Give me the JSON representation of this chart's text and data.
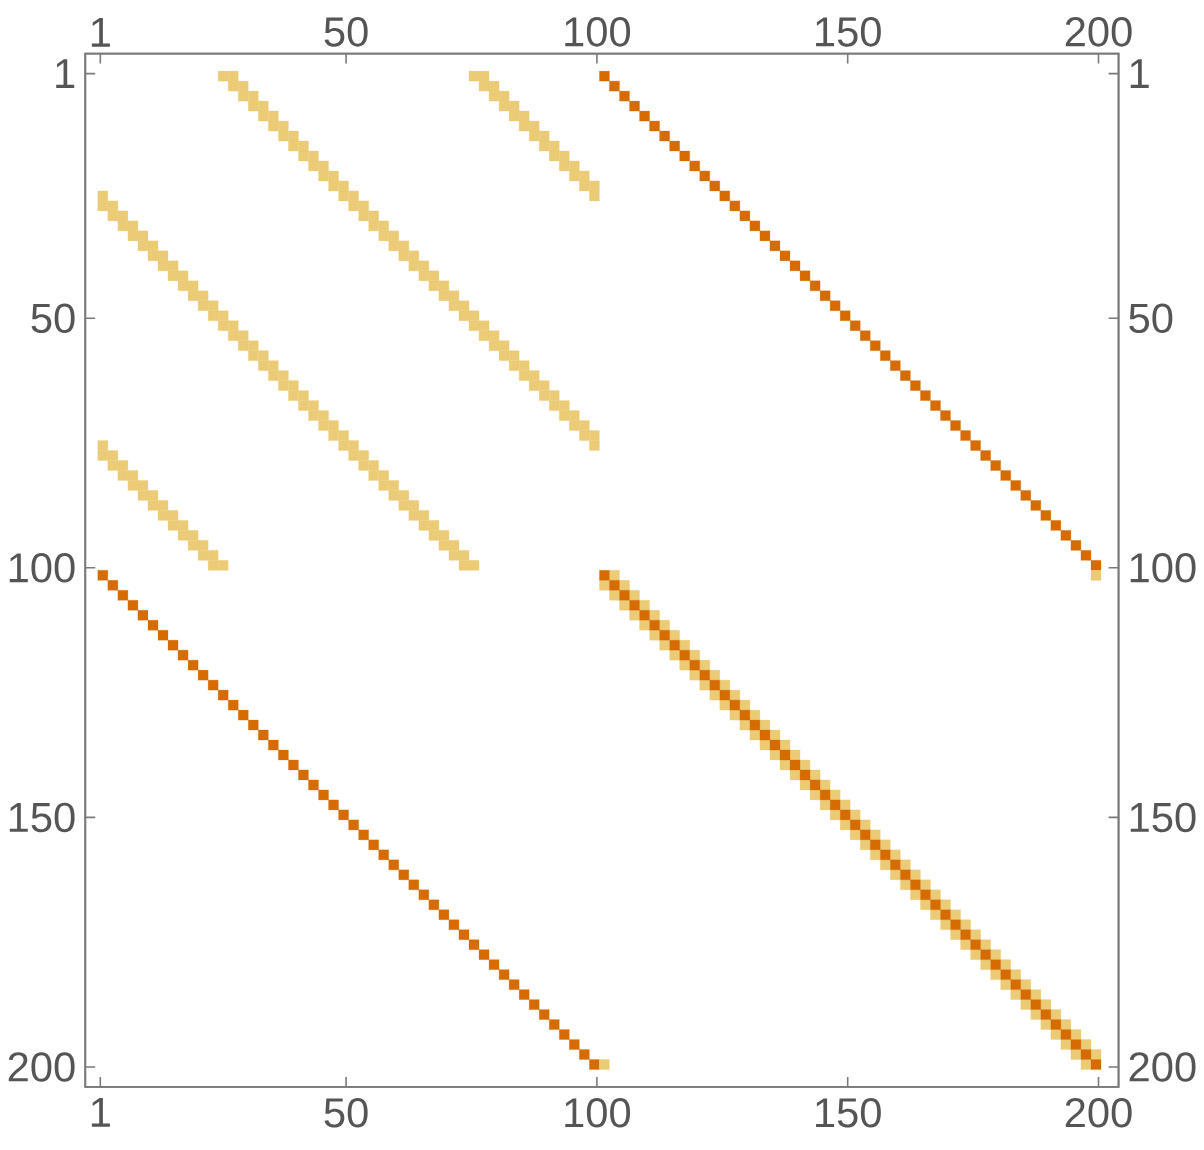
{
  "chart_data": {
    "type": "scatter",
    "marker": "square",
    "xlim": [
      -2,
      204
    ],
    "ylim": [
      204,
      -3
    ],
    "x2lim": [
      -2,
      204
    ],
    "y2lim": [
      204,
      -3
    ],
    "xticks": [
      1,
      50,
      100,
      150,
      200
    ],
    "yticks": [
      1,
      50,
      100,
      150,
      200
    ],
    "x2ticks": [
      1,
      50,
      100,
      150,
      200
    ],
    "y2ticks": [
      1,
      50,
      100,
      150,
      200
    ],
    "series": [
      {
        "color": "#d66c00",
        "x": [
          101.5,
          103.5,
          105.5,
          107.5,
          109.5,
          111.5,
          113.5,
          115.5,
          117.5,
          119.5,
          121.5,
          123.5,
          125.5,
          127.5,
          129.5,
          131.5,
          133.5,
          135.5,
          137.5,
          139.5,
          141.5,
          143.5,
          145.5,
          147.5,
          149.5,
          151.5,
          153.5,
          155.5,
          157.5,
          159.5,
          161.5,
          163.5,
          165.5,
          167.5,
          169.5,
          171.5,
          173.5,
          175.5,
          177.5,
          179.5,
          181.5,
          183.5,
          185.5,
          187.5,
          189.5,
          191.5,
          193.5,
          195.5,
          197.5,
          199.5
        ],
        "values": [
          1.5,
          3.5,
          5.5,
          7.5,
          9.5,
          11.5,
          13.5,
          15.5,
          17.5,
          19.5,
          21.5,
          23.5,
          25.5,
          27.5,
          29.5,
          31.5,
          33.5,
          35.5,
          37.5,
          39.5,
          41.5,
          43.5,
          45.5,
          47.5,
          49.5,
          51.5,
          53.5,
          55.5,
          57.5,
          59.5,
          61.5,
          63.5,
          65.5,
          67.5,
          69.5,
          71.5,
          73.5,
          75.5,
          77.5,
          79.5,
          81.5,
          83.5,
          85.5,
          87.5,
          89.5,
          91.5,
          93.5,
          95.5,
          97.5,
          99.5
        ]
      },
      {
        "color": "#d66c00",
        "x": [
          1.5,
          3.5,
          5.5,
          7.5,
          9.5,
          11.5,
          13.5,
          15.5,
          17.5,
          19.5,
          21.5,
          23.5,
          25.5,
          27.5,
          29.5,
          31.5,
          33.5,
          35.5,
          37.5,
          39.5,
          41.5,
          43.5,
          45.5,
          47.5,
          49.5,
          51.5,
          53.5,
          55.5,
          57.5,
          59.5,
          61.5,
          63.5,
          65.5,
          67.5,
          69.5,
          71.5,
          73.5,
          75.5,
          77.5,
          79.5,
          81.5,
          83.5,
          85.5,
          87.5,
          89.5,
          91.5,
          93.5,
          95.5,
          97.5,
          99.5
        ],
        "values": [
          101.5,
          103.5,
          105.5,
          107.5,
          109.5,
          111.5,
          113.5,
          115.5,
          117.5,
          119.5,
          121.5,
          123.5,
          125.5,
          127.5,
          129.5,
          131.5,
          133.5,
          135.5,
          137.5,
          139.5,
          141.5,
          143.5,
          145.5,
          147.5,
          149.5,
          151.5,
          153.5,
          155.5,
          157.5,
          159.5,
          161.5,
          163.5,
          165.5,
          167.5,
          169.5,
          171.5,
          173.5,
          175.5,
          177.5,
          179.5,
          181.5,
          183.5,
          185.5,
          187.5,
          189.5,
          191.5,
          193.5,
          195.5,
          197.5,
          199.5
        ]
      },
      {
        "color": "#ebcb75",
        "x": [
          103.5,
          105.5,
          107.5,
          109.5,
          111.5,
          113.5,
          115.5,
          117.5,
          119.5,
          121.5,
          123.5,
          125.5,
          127.5,
          129.5,
          131.5,
          133.5,
          135.5,
          137.5,
          139.5,
          141.5,
          143.5,
          145.5,
          147.5,
          149.5,
          151.5,
          153.5,
          155.5,
          157.5,
          159.5,
          161.5,
          163.5,
          165.5,
          167.5,
          169.5,
          171.5,
          173.5,
          175.5,
          177.5,
          179.5,
          181.5,
          183.5,
          185.5,
          187.5,
          189.5,
          191.5,
          193.5,
          195.5,
          197.5,
          199.5
        ],
        "values": [
          101.5,
          103.5,
          105.5,
          107.5,
          109.5,
          111.5,
          113.5,
          115.5,
          117.5,
          119.5,
          121.5,
          123.5,
          125.5,
          127.5,
          129.5,
          131.5,
          133.5,
          135.5,
          137.5,
          139.5,
          141.5,
          143.5,
          145.5,
          147.5,
          149.5,
          151.5,
          153.5,
          155.5,
          157.5,
          159.5,
          161.5,
          163.5,
          165.5,
          167.5,
          169.5,
          171.5,
          173.5,
          175.5,
          177.5,
          179.5,
          181.5,
          183.5,
          185.5,
          187.5,
          189.5,
          191.5,
          193.5,
          195.5,
          197.5
        ]
      },
      {
        "color": "#ebcb75",
        "x": [
          101.5,
          103.5,
          105.5,
          107.5,
          109.5,
          111.5,
          113.5,
          115.5,
          117.5,
          119.5,
          121.5,
          123.5,
          125.5,
          127.5,
          129.5,
          131.5,
          133.5,
          135.5,
          137.5,
          139.5,
          141.5,
          143.5,
          145.5,
          147.5,
          149.5,
          151.5,
          153.5,
          155.5,
          157.5,
          159.5,
          161.5,
          163.5,
          165.5,
          167.5,
          169.5,
          171.5,
          173.5,
          175.5,
          177.5,
          179.5,
          181.5,
          183.5,
          185.5,
          187.5,
          189.5,
          191.5,
          193.5,
          195.5,
          197.5
        ],
        "values": [
          103.5,
          105.5,
          107.5,
          109.5,
          111.5,
          113.5,
          115.5,
          117.5,
          119.5,
          121.5,
          123.5,
          125.5,
          127.5,
          129.5,
          131.5,
          133.5,
          135.5,
          137.5,
          139.5,
          141.5,
          143.5,
          145.5,
          147.5,
          149.5,
          151.5,
          153.5,
          155.5,
          157.5,
          159.5,
          161.5,
          163.5,
          165.5,
          167.5,
          169.5,
          171.5,
          173.5,
          175.5,
          177.5,
          179.5,
          181.5,
          183.5,
          185.5,
          187.5,
          189.5,
          191.5,
          193.5,
          195.5,
          197.5,
          199.5
        ]
      },
      {
        "color": "#d66c00",
        "x": [
          101.5,
          103.5,
          105.5,
          107.5,
          109.5,
          111.5,
          113.5,
          115.5,
          117.5,
          119.5,
          121.5,
          123.5,
          125.5,
          127.5,
          129.5,
          131.5,
          133.5,
          135.5,
          137.5,
          139.5,
          141.5,
          143.5,
          145.5,
          147.5,
          149.5,
          151.5,
          153.5,
          155.5,
          157.5,
          159.5,
          161.5,
          163.5,
          165.5,
          167.5,
          169.5,
          171.5,
          173.5,
          175.5,
          177.5,
          179.5,
          181.5,
          183.5,
          185.5,
          187.5,
          189.5,
          191.5,
          193.5,
          195.5,
          197.5,
          199.5
        ],
        "values": [
          101.5,
          103.5,
          105.5,
          107.5,
          109.5,
          111.5,
          113.5,
          115.5,
          117.5,
          119.5,
          121.5,
          123.5,
          125.5,
          127.5,
          129.5,
          131.5,
          133.5,
          135.5,
          137.5,
          139.5,
          141.5,
          143.5,
          145.5,
          147.5,
          149.5,
          151.5,
          153.5,
          155.5,
          157.5,
          159.5,
          161.5,
          163.5,
          165.5,
          167.5,
          169.5,
          171.5,
          173.5,
          175.5,
          177.5,
          179.5,
          181.5,
          183.5,
          185.5,
          187.5,
          189.5,
          191.5,
          193.5,
          195.5,
          197.5,
          199.5
        ]
      },
      {
        "color": "#ebcb75",
        "x": [
          199.5,
          101.5
        ],
        "values": [
          101.5,
          199.5
        ]
      },
      {
        "color": "#ebcb75",
        "x": [
          25.5,
          27.5,
          29.5,
          31.5,
          33.5,
          35.5,
          37.5,
          39.5,
          41.5,
          43.5,
          45.5,
          47.5,
          49.5,
          51.5,
          53.5,
          55.5,
          57.5,
          59.5,
          61.5,
          63.5,
          65.5,
          67.5,
          69.5,
          71.5,
          73.5,
          75.5,
          77.5,
          79.5,
          81.5,
          83.5,
          85.5,
          87.5,
          89.5,
          91.5,
          93.5,
          95.5,
          97.5,
          99.5
        ],
        "values": [
          1.5,
          3.5,
          5.5,
          7.5,
          9.5,
          11.5,
          13.5,
          15.5,
          17.5,
          19.5,
          21.5,
          23.5,
          25.5,
          27.5,
          29.5,
          31.5,
          33.5,
          35.5,
          37.5,
          39.5,
          41.5,
          43.5,
          45.5,
          47.5,
          49.5,
          51.5,
          53.5,
          55.5,
          57.5,
          59.5,
          61.5,
          63.5,
          65.5,
          67.5,
          69.5,
          71.5,
          73.5,
          75.5
        ]
      },
      {
        "color": "#ebcb75",
        "x": [
          27.5,
          29.5,
          31.5,
          33.5,
          35.5,
          37.5,
          39.5,
          41.5,
          43.5,
          45.5,
          47.5,
          49.5,
          51.5,
          53.5,
          55.5,
          57.5,
          59.5,
          61.5,
          63.5,
          65.5,
          67.5,
          69.5,
          71.5,
          73.5,
          75.5,
          77.5,
          79.5,
          81.5,
          83.5,
          85.5,
          87.5,
          89.5,
          91.5,
          93.5,
          95.5,
          97.5,
          99.5
        ],
        "values": [
          1.5,
          3.5,
          5.5,
          7.5,
          9.5,
          11.5,
          13.5,
          15.5,
          17.5,
          19.5,
          21.5,
          23.5,
          25.5,
          27.5,
          29.5,
          31.5,
          33.5,
          35.5,
          37.5,
          39.5,
          41.5,
          43.5,
          45.5,
          47.5,
          49.5,
          51.5,
          53.5,
          55.5,
          57.5,
          59.5,
          61.5,
          63.5,
          65.5,
          67.5,
          69.5,
          71.5,
          73.5
        ]
      },
      {
        "color": "#ebcb75",
        "x": [
          75.5,
          77.5,
          79.5,
          81.5,
          83.5,
          85.5,
          87.5,
          89.5,
          91.5,
          93.5,
          95.5,
          97.5,
          99.5
        ],
        "values": [
          1.5,
          3.5,
          5.5,
          7.5,
          9.5,
          11.5,
          13.5,
          15.5,
          17.5,
          19.5,
          21.5,
          23.5,
          25.5
        ]
      },
      {
        "color": "#ebcb75",
        "x": [
          77.5,
          79.5,
          81.5,
          83.5,
          85.5,
          87.5,
          89.5,
          91.5,
          93.5,
          95.5,
          97.5,
          99.5
        ],
        "values": [
          1.5,
          3.5,
          5.5,
          7.5,
          9.5,
          11.5,
          13.5,
          15.5,
          17.5,
          19.5,
          21.5,
          23.5
        ]
      },
      {
        "color": "#ebcb75",
        "x": [
          1.5,
          3.5,
          5.5,
          7.5,
          9.5,
          11.5,
          13.5,
          15.5,
          17.5,
          19.5,
          21.5,
          23.5,
          25.5,
          27.5,
          29.5,
          31.5,
          33.5,
          35.5,
          37.5,
          39.5,
          41.5,
          43.5,
          45.5,
          47.5,
          49.5,
          51.5,
          53.5,
          55.5,
          57.5,
          59.5,
          61.5,
          63.5,
          65.5,
          67.5,
          69.5,
          71.5,
          73.5
        ],
        "values": [
          27.5,
          29.5,
          31.5,
          33.5,
          35.5,
          37.5,
          39.5,
          41.5,
          43.5,
          45.5,
          47.5,
          49.5,
          51.5,
          53.5,
          55.5,
          57.5,
          59.5,
          61.5,
          63.5,
          65.5,
          67.5,
          69.5,
          71.5,
          73.5,
          75.5,
          77.5,
          79.5,
          81.5,
          83.5,
          85.5,
          87.5,
          89.5,
          91.5,
          93.5,
          95.5,
          97.5,
          99.5
        ]
      },
      {
        "color": "#ebcb75",
        "x": [
          1.5,
          3.5,
          5.5,
          7.5,
          9.5,
          11.5,
          13.5,
          15.5,
          17.5,
          19.5,
          21.5,
          23.5,
          25.5,
          27.5,
          29.5,
          31.5,
          33.5,
          35.5,
          37.5,
          39.5,
          41.5,
          43.5,
          45.5,
          47.5,
          49.5,
          51.5,
          53.5,
          55.5,
          57.5,
          59.5,
          61.5,
          63.5,
          65.5,
          67.5,
          69.5,
          71.5,
          73.5,
          75.5
        ],
        "values": [
          25.5,
          27.5,
          29.5,
          31.5,
          33.5,
          35.5,
          37.5,
          39.5,
          41.5,
          43.5,
          45.5,
          47.5,
          49.5,
          51.5,
          53.5,
          55.5,
          57.5,
          59.5,
          61.5,
          63.5,
          65.5,
          67.5,
          69.5,
          71.5,
          73.5,
          75.5,
          77.5,
          79.5,
          81.5,
          83.5,
          85.5,
          87.5,
          89.5,
          91.5,
          93.5,
          95.5,
          97.5,
          99.5
        ]
      },
      {
        "color": "#ebcb75",
        "x": [
          1.5,
          3.5,
          5.5,
          7.5,
          9.5,
          11.5,
          13.5,
          15.5,
          17.5,
          19.5,
          21.5,
          23.5
        ],
        "values": [
          77.5,
          79.5,
          81.5,
          83.5,
          85.5,
          87.5,
          89.5,
          91.5,
          93.5,
          95.5,
          97.5,
          99.5
        ]
      },
      {
        "color": "#ebcb75",
        "x": [
          1.5,
          3.5,
          5.5,
          7.5,
          9.5,
          11.5,
          13.5,
          15.5,
          17.5,
          19.5,
          21.5,
          23.5,
          25.5
        ],
        "values": [
          75.5,
          77.5,
          79.5,
          81.5,
          83.5,
          85.5,
          87.5,
          89.5,
          91.5,
          93.5,
          95.5,
          97.5,
          99.5
        ]
      }
    ]
  }
}
